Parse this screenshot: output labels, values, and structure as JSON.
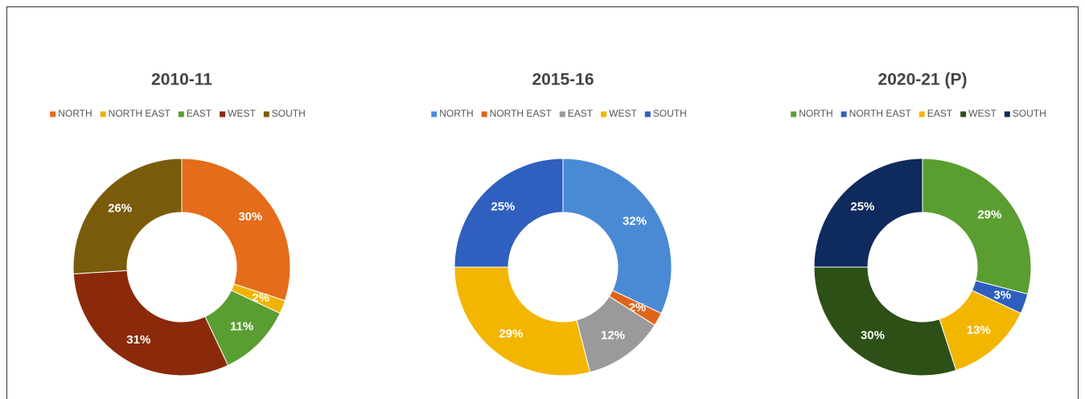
{
  "chart_data": [
    {
      "type": "donut",
      "title": "2010-11",
      "categories": [
        "NORTH",
        "NORTH EAST",
        "EAST",
        "WEST",
        "SOUTH"
      ],
      "values": [
        30,
        2,
        11,
        31,
        26
      ],
      "value_labels": [
        "30%",
        "2%",
        "11%",
        "31%",
        "26%"
      ],
      "colors": [
        "#e46c1a",
        "#f0b400",
        "#5a9e32",
        "#8b2a0a",
        "#7a5b0c"
      ]
    },
    {
      "type": "donut",
      "title": "2015-16",
      "categories": [
        "NORTH",
        "NORTH EAST",
        "EAST",
        "WEST",
        "SOUTH"
      ],
      "values": [
        32,
        2,
        12,
        29,
        25
      ],
      "value_labels": [
        "32%",
        "2%",
        "12%",
        "29%",
        "25%"
      ],
      "colors": [
        "#4a8ad4",
        "#e0651a",
        "#9a9a9a",
        "#f2b600",
        "#2f5fbf"
      ]
    },
    {
      "type": "donut",
      "title": "2020-21 (P)",
      "categories": [
        "NORTH",
        "NORTH EAST",
        "EAST",
        "WEST",
        "SOUTH"
      ],
      "values": [
        29,
        3,
        13,
        30,
        25
      ],
      "value_labels": [
        "29%",
        "3%",
        "13%",
        "30%",
        "25%"
      ],
      "colors": [
        "#5a9e32",
        "#2e5fbf",
        "#f2b600",
        "#2c5016",
        "#0f2a5c"
      ]
    }
  ]
}
